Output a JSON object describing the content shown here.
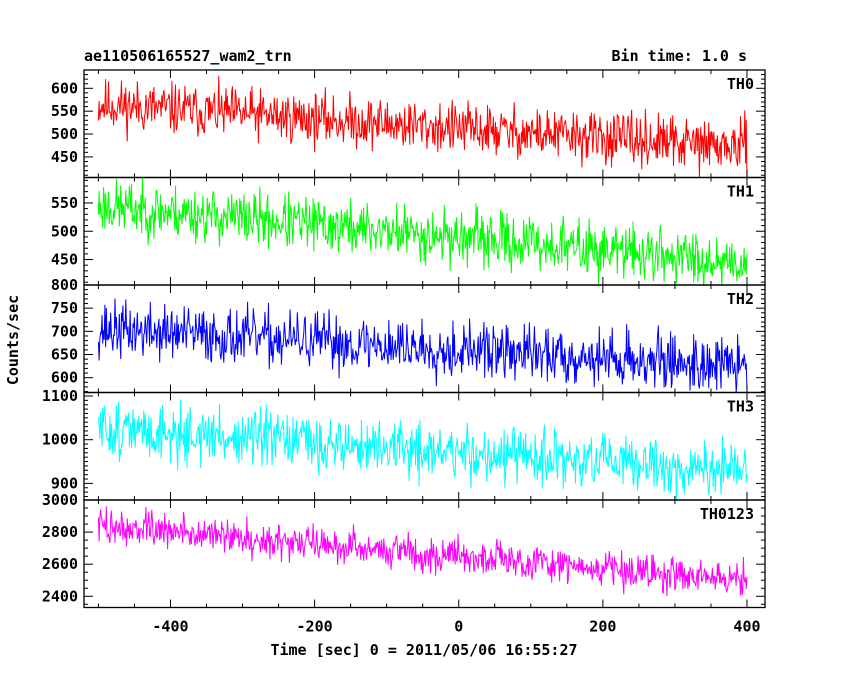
{
  "header": {
    "title": "ae110506165527_wam2_trn",
    "bin_time": "Bin time: 1.0 s"
  },
  "axes": {
    "ylabel": "Counts/sec",
    "xlabel": "Time [sec] 0 = 2011/05/06 16:55:27",
    "xticks": [
      -400,
      -200,
      0,
      200,
      400
    ],
    "xlim": [
      -520,
      425
    ]
  },
  "chart_data": {
    "type": "line",
    "x_range": [
      -500,
      400
    ],
    "bin_seconds": 1.0,
    "panels": [
      {
        "name": "TH0",
        "color": "#ff0000",
        "ylim": [
          405,
          640
        ],
        "yticks": [
          450,
          500,
          550,
          600
        ],
        "start_mean": 565,
        "end_mean": 470,
        "noise": 28,
        "seed": 11
      },
      {
        "name": "TH1",
        "color": "#00ff00",
        "ylim": [
          405,
          595
        ],
        "yticks": [
          450,
          500,
          550
        ],
        "start_mean": 545,
        "end_mean": 445,
        "noise": 24,
        "seed": 23
      },
      {
        "name": "TH2",
        "color": "#0000ff",
        "ylim": [
          568,
          800
        ],
        "yticks": [
          600,
          650,
          700,
          750,
          800
        ],
        "start_mean": 705,
        "end_mean": 625,
        "noise": 30,
        "seed": 37
      },
      {
        "name": "TH3",
        "color": "#00ffff",
        "ylim": [
          862,
          1108
        ],
        "yticks": [
          900,
          1000,
          1100
        ],
        "start_mean": 1025,
        "end_mean": 925,
        "noise": 32,
        "seed": 51
      },
      {
        "name": "TH0123",
        "color": "#ff00ff",
        "ylim": [
          2330,
          3000
        ],
        "yticks": [
          2400,
          2600,
          2800,
          3000
        ],
        "start_mean": 2840,
        "end_mean": 2500,
        "noise": 55,
        "seed": 73
      }
    ]
  }
}
